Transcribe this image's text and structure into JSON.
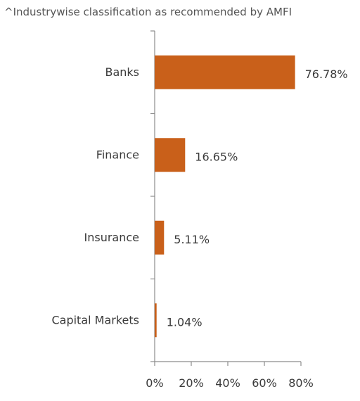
{
  "note": "^Industrywise classification as recommended by AMFI",
  "colors": {
    "bar": "#C9601A",
    "axis": "#8c8c8c"
  },
  "chart_data": {
    "type": "bar",
    "orientation": "horizontal",
    "title": "",
    "xlabel": "",
    "ylabel": "",
    "categories": [
      "Banks",
      "Finance",
      "Insurance",
      "Capital Markets"
    ],
    "values": [
      76.78,
      16.65,
      5.11,
      1.04
    ],
    "value_labels": [
      "76.78%",
      "16.65%",
      "5.11%",
      "1.04%"
    ],
    "xlim": [
      0,
      80
    ],
    "x_ticks": [
      "0%",
      "20%",
      "40%",
      "60%",
      "80%"
    ],
    "grid": false,
    "legend": "none"
  }
}
